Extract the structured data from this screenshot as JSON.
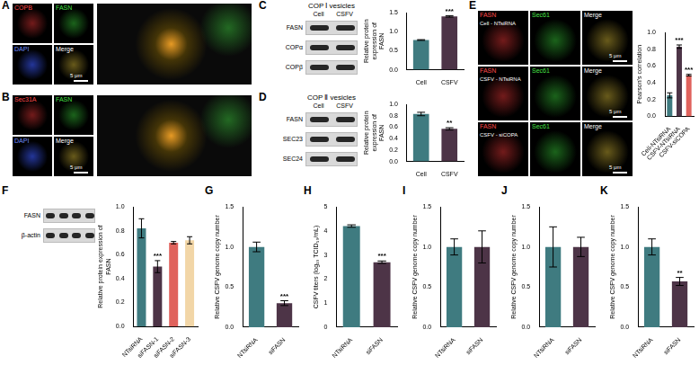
{
  "chart_data": [
    {
      "panel": "C",
      "type": "bar",
      "categories": [
        "Cell",
        "CSFV"
      ],
      "values": [
        0.78,
        1.4
      ],
      "errors": [
        0.01,
        0.02
      ],
      "colors": [
        "#3f7b80",
        "#4d3447"
      ],
      "ylabel": "Relative protein expression of FASN",
      "ylim": [
        0,
        1.5
      ],
      "yticks": [
        {
          "value": 0,
          "label": "0.0"
        },
        {
          "value": 0.5,
          "label": "0.5"
        },
        {
          "value": 1,
          "label": "1.0"
        },
        {
          "value": 1.5,
          "label": "1.5"
        }
      ],
      "annotations": [
        null,
        "***"
      ],
      "grid": false
    },
    {
      "panel": "D",
      "type": "bar",
      "categories": [
        "Cell",
        "CSFV"
      ],
      "values": [
        0.83,
        0.57
      ],
      "errors": [
        0.03,
        0.02
      ],
      "colors": [
        "#3f7b80",
        "#4d3447"
      ],
      "ylabel": "Relative protein expression of FASN",
      "ylim": [
        0,
        1
      ],
      "yticks": [
        {
          "value": 0,
          "label": "0.0"
        },
        {
          "value": 0.2,
          "label": "0.2"
        },
        {
          "value": 0.4,
          "label": "0.4"
        },
        {
          "value": 0.6,
          "label": "0.6"
        },
        {
          "value": 0.8,
          "label": "0.8"
        },
        {
          "value": 1,
          "label": "1.0"
        }
      ],
      "annotations": [
        null,
        "**"
      ],
      "grid": false
    },
    {
      "panel": "E",
      "type": "bar",
      "categories": [
        "Cell-NTsiRNA",
        "CSFV-NTsiRNA",
        "CSFV-siCOPA"
      ],
      "values": [
        0.25,
        0.83,
        0.49
      ],
      "errors": [
        0.03,
        0.02,
        0.01
      ],
      "colors": [
        "#3f7b80",
        "#4d3447",
        "#e0625c"
      ],
      "ylabel": "Pearson's correlation",
      "ylim": [
        0,
        1
      ],
      "yticks": [
        {
          "value": 0,
          "label": "0.0"
        },
        {
          "value": 0.2,
          "label": "0.2"
        },
        {
          "value": 0.4,
          "label": "0.4"
        },
        {
          "value": 0.6,
          "label": "0.6"
        },
        {
          "value": 0.8,
          "label": "0.8"
        },
        {
          "value": 1,
          "label": "1.0"
        }
      ],
      "annotations": [
        null,
        "***",
        "***"
      ],
      "grid": false
    },
    {
      "panel": "F",
      "type": "bar",
      "categories": [
        "NTsiRNA",
        "siFASN-1",
        "siFASN-2",
        "siFASN-3"
      ],
      "values": [
        0.82,
        0.5,
        0.7,
        0.72
      ],
      "errors": [
        0.08,
        0.05,
        0.01,
        0.03
      ],
      "colors": [
        "#3f7b80",
        "#4d3447",
        "#e0625c",
        "#f2d6a7"
      ],
      "ylabel": "Relative protein expression of FASN",
      "ylim": [
        0,
        1
      ],
      "yticks": [
        {
          "value": 0,
          "label": "0.0"
        },
        {
          "value": 0.2,
          "label": "0.2"
        },
        {
          "value": 0.4,
          "label": "0.4"
        },
        {
          "value": 0.6,
          "label": "0.6"
        },
        {
          "value": 0.8,
          "label": "0.8"
        },
        {
          "value": 1,
          "label": "1.0"
        }
      ],
      "annotations": [
        null,
        "***",
        null,
        null
      ],
      "grid": false
    },
    {
      "panel": "G",
      "type": "bar",
      "categories": [
        "NTsiRNA",
        "siFASN"
      ],
      "values": [
        1.0,
        0.3
      ],
      "errors": [
        0.06,
        0.03
      ],
      "colors": [
        "#3f7b80",
        "#4d3447"
      ],
      "ylabel": "Relative CSFV genome copy number",
      "ylim": [
        0,
        1.5
      ],
      "yticks": [
        {
          "value": 0,
          "label": "0.0"
        },
        {
          "value": 0.5,
          "label": "0.5"
        },
        {
          "value": 1,
          "label": "1.0"
        },
        {
          "value": 1.5,
          "label": "1.5"
        }
      ],
      "annotations": [
        null,
        "***"
      ],
      "grid": false
    },
    {
      "panel": "H",
      "type": "bar",
      "categories": [
        "NTsiRNA",
        "siFASN"
      ],
      "values": [
        4.2,
        2.7
      ],
      "errors": [
        0.05,
        0.05
      ],
      "colors": [
        "#3f7b80",
        "#4d3447"
      ],
      "ylabel": "CSFV titers (log₁₀ TCID₅₀/mL)",
      "ylim": [
        0,
        5
      ],
      "yticks": [
        0,
        1,
        2,
        3,
        4,
        5
      ],
      "annotations": [
        null,
        "***"
      ],
      "grid": false
    },
    {
      "panel": "I",
      "type": "bar",
      "categories": [
        "NTsiRNA",
        "siFASN"
      ],
      "values": [
        1.0,
        1.0
      ],
      "errors": [
        0.1,
        0.2
      ],
      "colors": [
        "#3f7b80",
        "#4d3447"
      ],
      "ylabel": "Relative CSFV genome copy number",
      "ylim": [
        0,
        1.5
      ],
      "yticks": [
        {
          "value": 0,
          "label": "0.0"
        },
        {
          "value": 0.5,
          "label": "0.5"
        },
        {
          "value": 1,
          "label": "1.0"
        },
        {
          "value": 1.5,
          "label": "1.5"
        }
      ],
      "grid": false
    },
    {
      "panel": "J",
      "type": "bar",
      "categories": [
        "NTsiRNA",
        "siFASN"
      ],
      "values": [
        1.0,
        1.0
      ],
      "errors": [
        0.25,
        0.12
      ],
      "colors": [
        "#3f7b80",
        "#4d3447"
      ],
      "ylabel": "Relative CSFV genome copy number",
      "ylim": [
        0,
        1.5
      ],
      "yticks": [
        {
          "value": 0,
          "label": "0.0"
        },
        {
          "value": 0.5,
          "label": "0.5"
        },
        {
          "value": 1,
          "label": "1.0"
        },
        {
          "value": 1.5,
          "label": "1.5"
        }
      ],
      "grid": false
    },
    {
      "panel": "K",
      "type": "bar",
      "categories": [
        "NTsiRNA",
        "siFASN"
      ],
      "values": [
        1.0,
        0.57
      ],
      "errors": [
        0.1,
        0.05
      ],
      "colors": [
        "#3f7b80",
        "#4d3447"
      ],
      "ylabel": "Relative CSFV genome copy number",
      "ylim": [
        0,
        1.5
      ],
      "yticks": [
        {
          "value": 0,
          "label": "0.0"
        },
        {
          "value": 0.5,
          "label": "0.5"
        },
        {
          "value": 1,
          "label": "1.0"
        },
        {
          "value": 1.5,
          "label": "1.5"
        }
      ],
      "annotations": [
        null,
        "**"
      ],
      "grid": false
    }
  ],
  "image_panels": [
    {
      "panel": "A",
      "channels": [
        "COPB",
        "FASN",
        "DAPI",
        "Merge"
      ],
      "scale_bar": "5 μm"
    },
    {
      "panel": "B",
      "channels": [
        "Sec31A",
        "FASN",
        "DAPI",
        "Merge"
      ],
      "scale_bar": "5 μm"
    },
    {
      "panel": "E",
      "channels": [
        "FASN",
        "Sec61",
        "Merge"
      ],
      "rows": [
        "Cell - NTsiRNA",
        "CSFV - NTsiRNA",
        "CSFV - siCOPA"
      ],
      "scale_bar": "5 μm"
    }
  ],
  "blots": [
    {
      "panel": "C",
      "title": "COP Ⅰ vesicles",
      "lanes": [
        "Cell",
        "CSFV"
      ],
      "rows": [
        "FASN",
        "COPα",
        "COPβ"
      ]
    },
    {
      "panel": "D",
      "title": "COP Ⅱ vesicles",
      "lanes": [
        "Cell",
        "CSFV"
      ],
      "rows": [
        "FASN",
        "SEC23",
        "SEC24"
      ]
    },
    {
      "panel": "F",
      "rows": [
        "FASN",
        "β-actin"
      ]
    }
  ]
}
